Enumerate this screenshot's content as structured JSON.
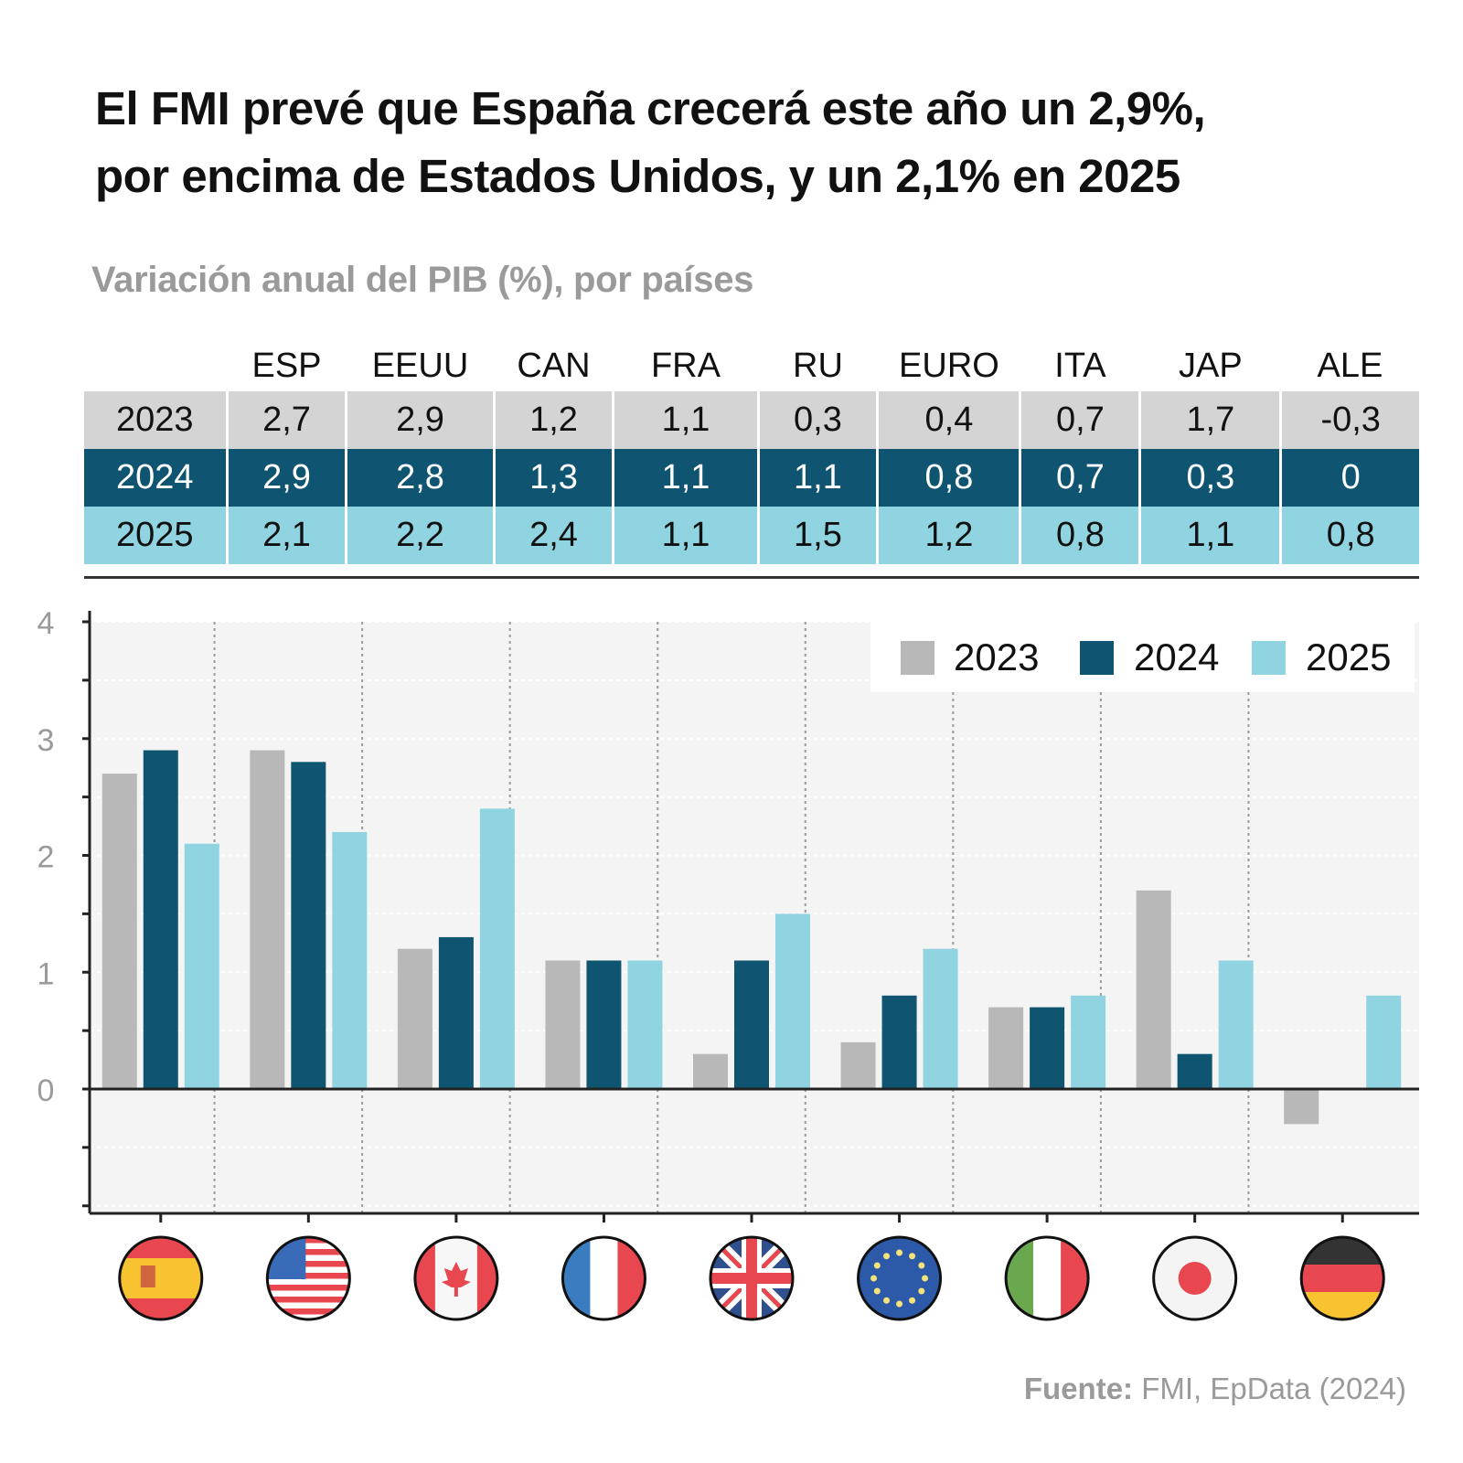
{
  "header": {
    "title_line1": "El FMI prevé que España crecerá este año un 2,9%,",
    "title_line2": "por encima de Estados Unidos, y un 2,1% en 2025",
    "subtitle": "Variación anual del PIB (%), por países"
  },
  "table": {
    "columns": [
      "ESP",
      "EEUU",
      "CAN",
      "FRA",
      "RU",
      "EURO",
      "ITA",
      "JAP",
      "ALE"
    ],
    "rows": [
      {
        "year": "2023",
        "values": [
          "2,7",
          "2,9",
          "1,2",
          "1,1",
          "0,3",
          "0,4",
          "0,7",
          "1,7",
          "-0,3"
        ]
      },
      {
        "year": "2024",
        "values": [
          "2,9",
          "2,8",
          "1,3",
          "1,1",
          "1,1",
          "0,8",
          "0,7",
          "0,3",
          "0"
        ]
      },
      {
        "year": "2025",
        "values": [
          "2,1",
          "2,2",
          "2,4",
          "1,1",
          "1,5",
          "1,2",
          "0,8",
          "1,1",
          "0,8"
        ]
      }
    ]
  },
  "colors": {
    "2023": "#b9b8b8",
    "2024": "#0f5470",
    "2025": "#8fd4e0",
    "plot_bg": "#f4f4f4"
  },
  "flags": [
    "spain-flag",
    "usa-flag",
    "canada-flag",
    "france-flag",
    "uk-flag",
    "eu-flag",
    "italy-flag",
    "japan-flag",
    "germany-flag"
  ],
  "footer": {
    "label": "Fuente:",
    "source": "FMI, EpData (2024)"
  },
  "chart_data": {
    "type": "bar",
    "title": "Variación anual del PIB (%), por países",
    "xlabel": "",
    "ylabel": "",
    "categories": [
      "ESP",
      "EEUU",
      "CAN",
      "FRA",
      "RU",
      "EURO",
      "ITA",
      "JAP",
      "ALE"
    ],
    "series": [
      {
        "name": "2023",
        "values": [
          2.7,
          2.9,
          1.2,
          1.1,
          0.3,
          0.4,
          0.7,
          1.7,
          -0.3
        ]
      },
      {
        "name": "2024",
        "values": [
          2.9,
          2.8,
          1.3,
          1.1,
          1.1,
          0.8,
          0.7,
          0.3,
          0
        ]
      },
      {
        "name": "2025",
        "values": [
          2.1,
          2.2,
          2.4,
          1.1,
          1.5,
          1.2,
          0.8,
          1.1,
          0.8
        ]
      }
    ],
    "ylim": [
      -1.07,
      4
    ],
    "yticks": [
      0,
      1,
      2,
      3,
      4
    ],
    "grid": true,
    "legend": "top-right"
  }
}
